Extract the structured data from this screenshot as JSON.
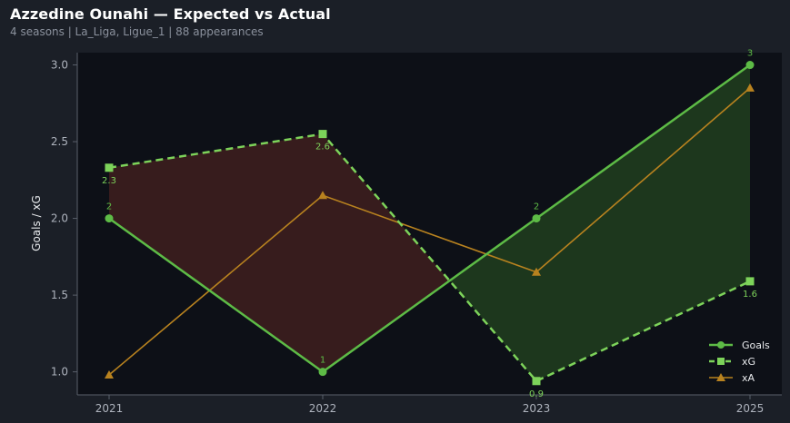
{
  "header": {
    "title": "Azzedine Ounahi — Expected vs Actual",
    "subtitle": "4 seasons | La_Liga, Ligue_1 | 88 appearances"
  },
  "colors": {
    "background": "#1b1f27",
    "plot_bg": "#0d1017",
    "goals": "#5dbb46",
    "xg": "#7dd35a",
    "xa": "#b8821f",
    "under_fill": "#3a1e1e",
    "over_fill": "#1f3a1e"
  },
  "chart_data": {
    "type": "line",
    "title": "",
    "xlabel": "",
    "ylabel": "Goals / xG",
    "categories": [
      "2021",
      "2022",
      "2023",
      "2025"
    ],
    "ylim": [
      0.85,
      3.08
    ],
    "yticks": [
      1.0,
      1.5,
      2.0,
      2.5,
      3.0
    ],
    "ytick_labels": [
      "1.0",
      "1.5",
      "2.0",
      "2.5",
      "3.0"
    ],
    "grid": false,
    "legend_position": "bottom-right",
    "series": [
      {
        "name": "Goals",
        "values": [
          2,
          1,
          2,
          3
        ],
        "labels": [
          "2",
          "1",
          "2",
          "3"
        ],
        "style": "solid",
        "marker": "circle",
        "color": "#5dbb46"
      },
      {
        "name": "xG",
        "values": [
          2.33,
          2.55,
          0.94,
          1.59
        ],
        "labels": [
          "2.3",
          "2.6",
          "0.9",
          "1.6"
        ],
        "style": "dashed",
        "marker": "square",
        "color": "#7dd35a"
      },
      {
        "name": "xA",
        "values": [
          0.98,
          2.15,
          1.65,
          2.85
        ],
        "style": "solid",
        "marker": "triangle",
        "color": "#b8821f"
      }
    ]
  }
}
